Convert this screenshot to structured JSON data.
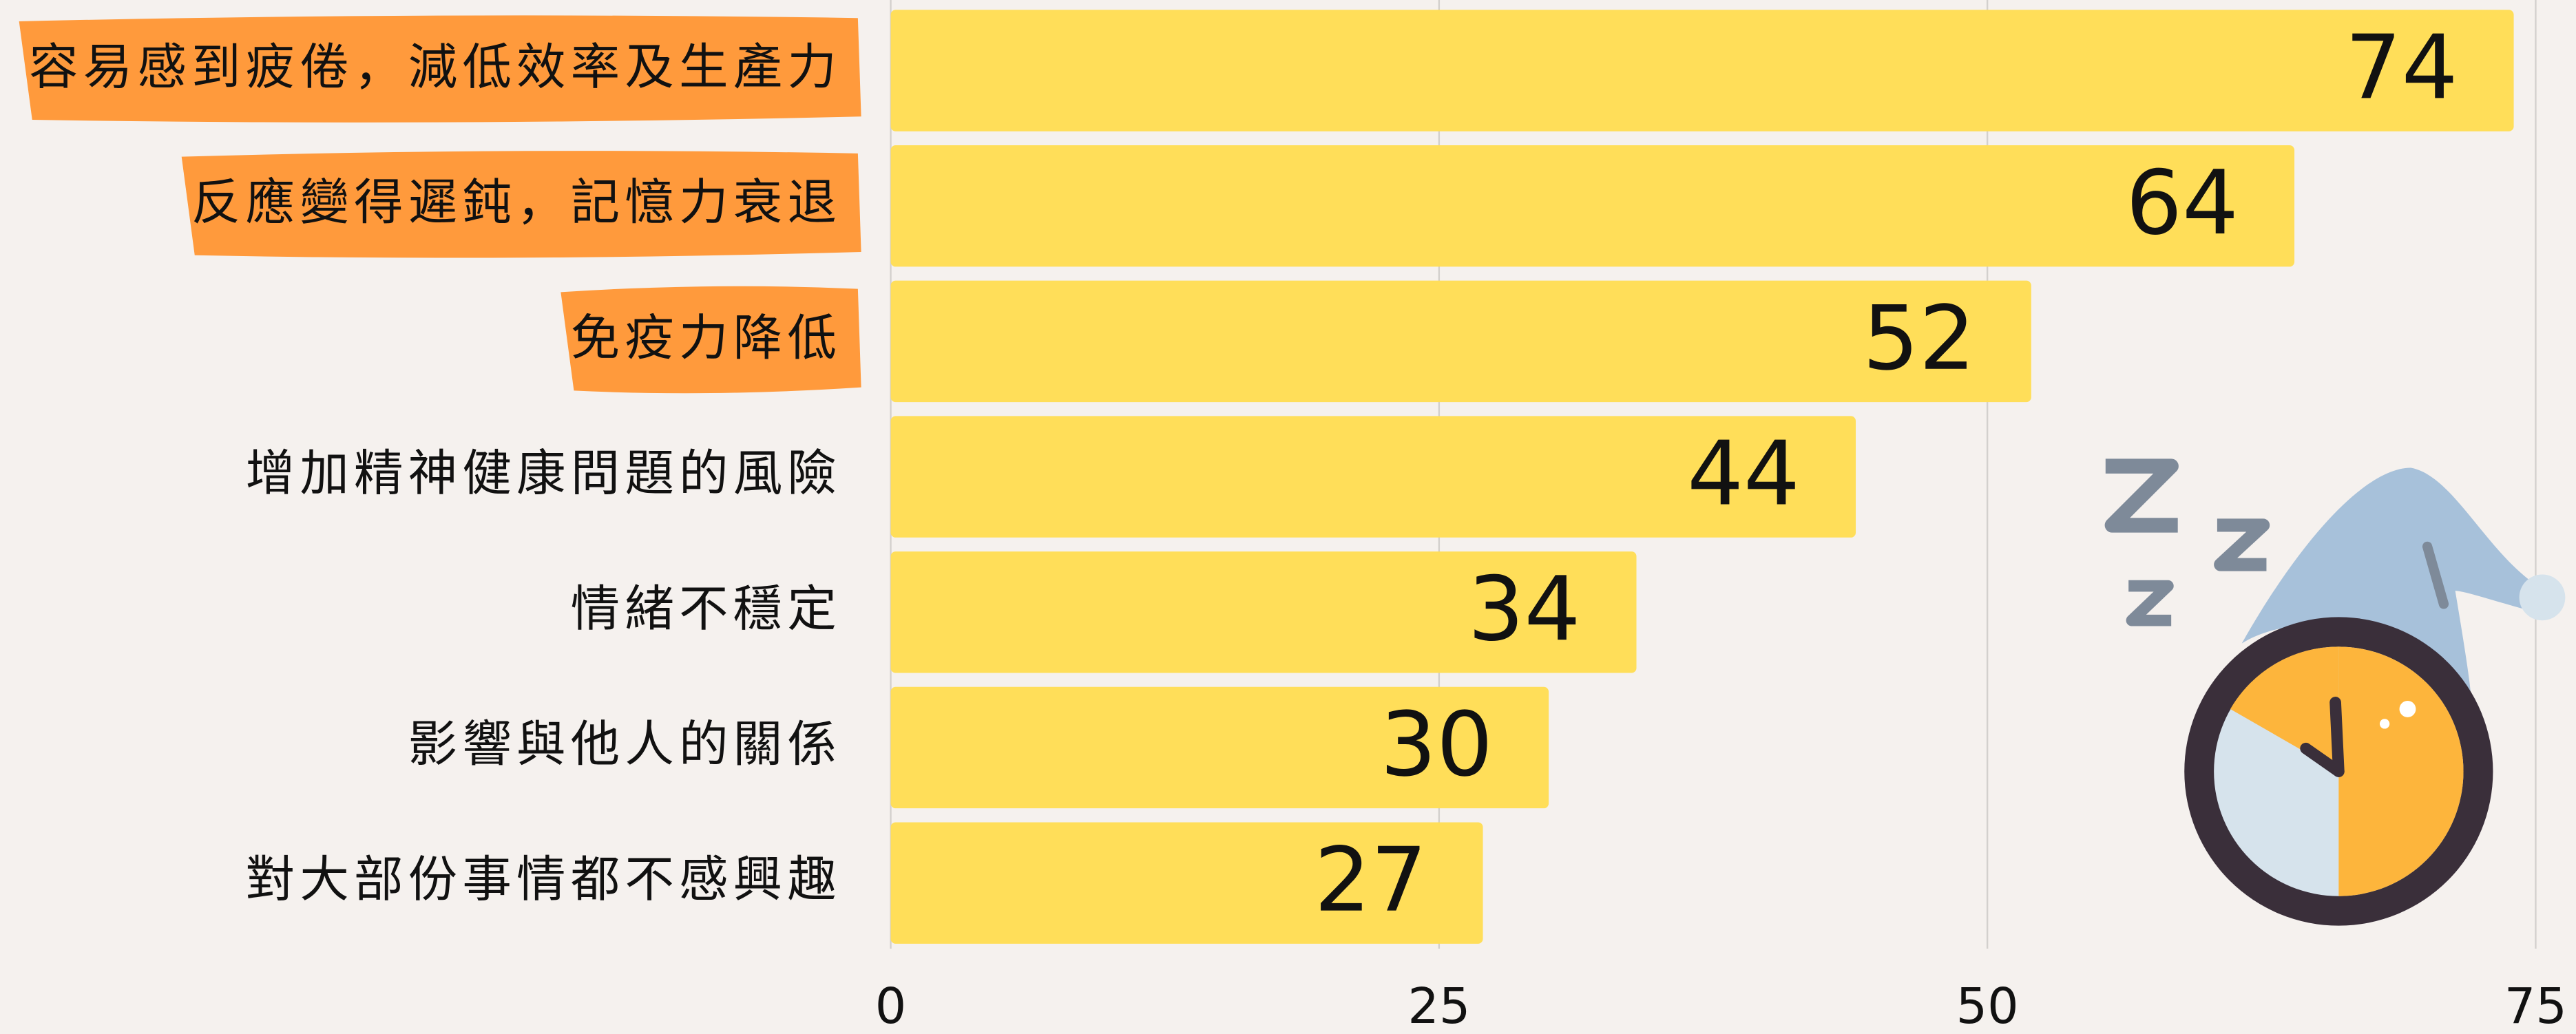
{
  "chart_data": {
    "type": "bar",
    "orientation": "horizontal",
    "categories": [
      "容易感到疲倦，減低效率及生產力",
      "反應變得遲鈍，記憶力衰退",
      "免疫力降低",
      "增加精神健康問題的風險",
      "情緒不穩定",
      "影響與他人的關係",
      "對大部份事情都不感興趣"
    ],
    "values": [
      74,
      64,
      52,
      44,
      34,
      30,
      27
    ],
    "color": "#FFDE59",
    "label_highlight": [
      true,
      true,
      true,
      false,
      false,
      false,
      false
    ],
    "highlight_color": "#FF9A3C",
    "xlim": [
      0,
      75
    ],
    "xticks": [
      0,
      25,
      50,
      75
    ],
    "grid": true
  }
}
